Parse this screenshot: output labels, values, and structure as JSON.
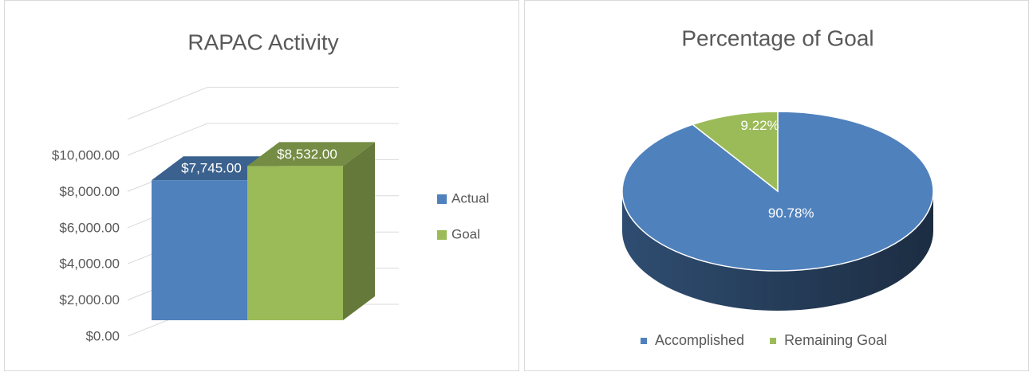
{
  "chart_data": [
    {
      "type": "bar3d",
      "title": "RAPAC Activity",
      "series": [
        {
          "name": "Actual",
          "color": "#4f81bd",
          "values": [
            7745
          ],
          "value_labels": [
            "$7,745.00"
          ]
        },
        {
          "name": "Goal",
          "color": "#9bbb59",
          "values": [
            8532
          ],
          "value_labels": [
            "$8,532.00"
          ]
        }
      ],
      "ylim": [
        0,
        12000
      ],
      "yticks": [
        {
          "value": 0,
          "label": "$0.00"
        },
        {
          "value": 2000,
          "label": "$2,000.00"
        },
        {
          "value": 4000,
          "label": "$4,000.00"
        },
        {
          "value": 6000,
          "label": "$6,000.00"
        },
        {
          "value": 8000,
          "label": "$8,000.00"
        },
        {
          "value": 10000,
          "label": "$10,000.00"
        }
      ],
      "grid": true,
      "legend": "right"
    },
    {
      "type": "pie3d",
      "title": "Percentage of Goal",
      "categories": [
        "Accomplished",
        "Remaining Goal"
      ],
      "values": [
        90.78,
        9.22
      ],
      "value_labels": [
        "90.78%",
        "9.22%"
      ],
      "colors": [
        "#4f81bd",
        "#9bbb59"
      ],
      "legend": "bottom"
    }
  ]
}
